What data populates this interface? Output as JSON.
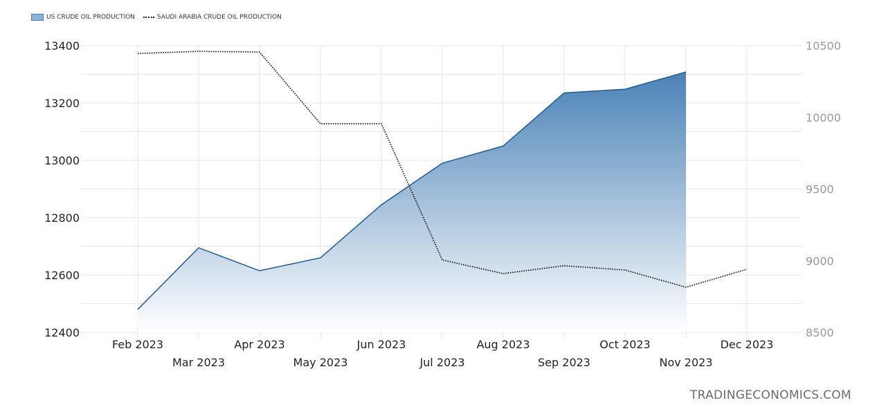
{
  "legend": {
    "series1": "US CRUDE OIL PRODUCTION",
    "series2": "SAUDI ARABIA CRUDE OIL PRODUCTION"
  },
  "watermark": "TRADINGECONOMICS.COM",
  "colors": {
    "us_line": "#1f5b93",
    "us_fill_top": "#4a82b6",
    "us_fill_bottom": "#ffffff",
    "saudi_line": "#111111",
    "grid": "#e6e6e6"
  },
  "chart_data": {
    "type": "area",
    "categories": [
      "Feb 2023",
      "Mar 2023",
      "Apr 2023",
      "May 2023",
      "Jun 2023",
      "Jul 2023",
      "Aug 2023",
      "Sep 2023",
      "Oct 2023",
      "Nov 2023",
      "Dec 2023"
    ],
    "series": [
      {
        "name": "US CRUDE OIL PRODUCTION",
        "axis": "left",
        "style": "area",
        "values": [
          12480,
          12695,
          12615,
          12660,
          12845,
          12990,
          13050,
          13235,
          13248,
          13308,
          null
        ]
      },
      {
        "name": "SAUDI ARABIA CRUDE OIL PRODUCTION",
        "axis": "right",
        "style": "dotted-line",
        "values": [
          10445,
          10460,
          10455,
          9955,
          9955,
          9005,
          8910,
          8965,
          8935,
          8815,
          8940
        ]
      }
    ],
    "y_left": {
      "min": 12400,
      "max": 13400,
      "ticks": [
        "12400",
        "12600",
        "12800",
        "13000",
        "13200",
        "13400"
      ]
    },
    "y_right": {
      "min": 8500,
      "max": 10500,
      "ticks": [
        "8500",
        "9000",
        "9500",
        "10000",
        "10500"
      ]
    },
    "grid": true,
    "legend_position": "top-left"
  }
}
